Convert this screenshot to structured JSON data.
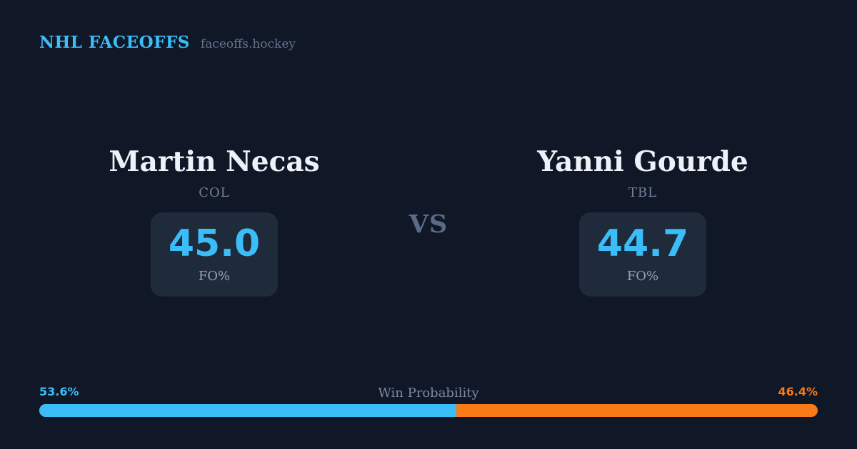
{
  "header": {
    "brand": "NHL FACEOFFS",
    "site": "faceoffs.hockey"
  },
  "matchup": {
    "vs_label": "VS",
    "players": [
      {
        "name": "Martin Necas",
        "team": "COL",
        "stat_value": "45.0",
        "stat_label": "FO%"
      },
      {
        "name": "Yanni Gourde",
        "team": "TBL",
        "stat_value": "44.7",
        "stat_label": "FO%"
      }
    ]
  },
  "win_probability": {
    "title": "Win Probability",
    "left_pct": "53.6%",
    "right_pct": "46.4%",
    "left_value": 53.6,
    "right_value": 46.4
  },
  "colors": {
    "background": "#101828",
    "card_background": "#1f2a3a",
    "accent_blue": "#3bbdf8",
    "accent_orange": "#f97b17",
    "text_primary": "#eef2f8",
    "text_muted": "#74819a"
  }
}
